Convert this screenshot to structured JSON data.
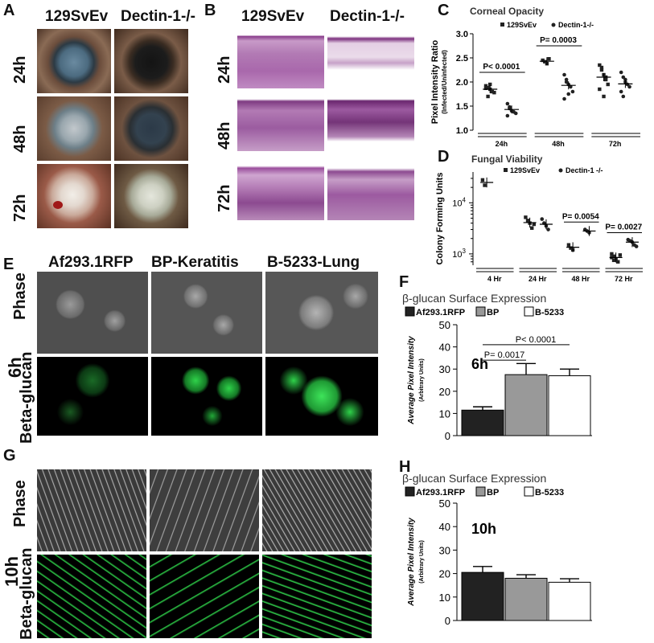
{
  "panels": {
    "A": {
      "letter": "A",
      "col_headers": [
        "129SvEv",
        "Dectin-1-/-"
      ],
      "rows": [
        "24h",
        "48h",
        "72h"
      ]
    },
    "B": {
      "letter": "B",
      "col_headers": [
        "129SvEv",
        "Dectin-1-/-"
      ],
      "rows": [
        "24h",
        "48h",
        "72h"
      ]
    },
    "C": {
      "letter": "C"
    },
    "D": {
      "letter": "D"
    },
    "E": {
      "letter": "E",
      "col_headers": [
        "Af293.1RFP",
        "BP-Keratitis",
        "B-5233-Lung"
      ],
      "row_labels": [
        "Phase",
        "Beta-glucan"
      ],
      "time": "6h"
    },
    "F": {
      "letter": "F"
    },
    "G": {
      "letter": "G",
      "row_labels": [
        "Phase",
        "Beta-glucan"
      ],
      "time": "10h"
    },
    "H": {
      "letter": "H"
    }
  },
  "colors": {
    "eye_dark": "#1a1a1a",
    "histo_pink": "#b06fb0",
    "gfp_green": "#2fd24a",
    "phase_gray": "#5a5a5a",
    "bar_black": "#222222",
    "bar_gray": "#999999",
    "bar_white": "#ffffff"
  },
  "chart_data": [
    {
      "id": "C",
      "type": "scatter",
      "title": "Corneal Opacity",
      "ylabel": "Pixel Intensity Ratio",
      "ylabel_sub": "(Infected/Uninfected)",
      "legend": [
        "129SvEv",
        "Dectin-1-/-"
      ],
      "legend_position": "top",
      "categories": [
        "24h",
        "48h",
        "72h"
      ],
      "ylim": [
        1.0,
        3.0
      ],
      "yticks": [
        "1.0",
        "1.5",
        "2.0",
        "2.5",
        "3.0"
      ],
      "series": [
        {
          "name": "129SvEv",
          "points": [
            [
              1.92,
              1.88,
              1.85,
              1.8,
              1.78,
              1.87,
              1.7,
              1.95
            ],
            [
              2.45,
              2.42,
              2.38,
              2.48
            ],
            [
              2.35,
              2.25,
              2.15,
              2.05,
              1.95,
              1.85,
              2.3,
              1.7,
              2.1
            ]
          ]
        },
        {
          "name": "Dectin-1-/-",
          "points": [
            [
              1.55,
              1.48,
              1.4,
              1.38,
              1.35,
              1.3,
              1.45
            ],
            [
              2.15,
              2.05,
              1.95,
              1.9,
              1.8,
              1.65,
              2.0,
              1.75
            ],
            [
              2.2,
              2.1,
              2.0,
              1.95,
              1.9,
              1.8,
              1.7,
              2.05
            ]
          ]
        }
      ],
      "means": [
        [
          1.85,
          1.43
        ],
        [
          2.43,
          1.93
        ],
        [
          2.1,
          1.96
        ]
      ],
      "annotations": [
        {
          "text": "P< 0.0001",
          "category": "24h"
        },
        {
          "text": "P= 0.0003",
          "category": "48h"
        }
      ]
    },
    {
      "id": "D",
      "type": "scatter",
      "title": "Fungal Viability",
      "ylabel": "Colony Forming Units",
      "legend": [
        "129SvEv",
        "Dectin-1 -/-"
      ],
      "legend_position": "top",
      "categories": [
        "4 Hr",
        "24 Hr",
        "48 Hr",
        "72 Hr"
      ],
      "yscale": "log",
      "ylim": [
        600,
        40000
      ],
      "yticks": [
        "10^3",
        "10^4"
      ],
      "series": [
        {
          "name": "129SvEv",
          "points": [
            [
              28000,
              22000
            ],
            [
              5200,
              4500,
              4000,
              3200,
              3800
            ],
            [
              1500,
              1300,
              1200
            ],
            [
              1000,
              900,
              800,
              700,
              950,
              850,
              750
            ]
          ]
        },
        {
          "name": "Dectin-1 -/-",
          "points": [
            [],
            [
              4800,
              4000,
              3500,
              3000
            ],
            [
              3000,
              2800,
              2600
            ],
            [
              1900,
              1800,
              1700,
              1500,
              1400
            ]
          ]
        }
      ],
      "means": [
        [
          25000,
          null
        ],
        [
          4100,
          3800
        ],
        [
          1350,
          2800
        ],
        [
          850,
          1700
        ]
      ],
      "annotations": [
        {
          "text": "P= 0.0054",
          "category": "48 Hr"
        },
        {
          "text": "P= 0.0027",
          "category": "72 Hr"
        }
      ]
    },
    {
      "id": "F",
      "type": "bar",
      "title": "β-glucan Surface Expression",
      "ylabel": "Average Pixel Intensity",
      "ylabel_sub": "(Arbitrary Units)",
      "categories": [
        "Af293.1RFP",
        "BP",
        "B-5233"
      ],
      "values": [
        11.5,
        27.5,
        27.0
      ],
      "errors": [
        1.5,
        5.0,
        3.0
      ],
      "colors": [
        "#222222",
        "#999999",
        "#ffffff"
      ],
      "ylim": [
        0,
        50
      ],
      "yticks": [
        "0",
        "10",
        "20",
        "30",
        "40",
        "50"
      ],
      "inset_label": "6h",
      "annotations": [
        "P= 0.0017",
        "P< 0.0001"
      ]
    },
    {
      "id": "H",
      "type": "bar",
      "title": "β-glucan Surface Expression",
      "ylabel": "Average Pixel Intensity",
      "ylabel_sub": "(Arbitrary Units)",
      "categories": [
        "Af293.1RFP",
        "BP",
        "B-5233"
      ],
      "values": [
        20.5,
        18.0,
        16.3
      ],
      "errors": [
        2.5,
        1.5,
        1.5
      ],
      "colors": [
        "#222222",
        "#999999",
        "#ffffff"
      ],
      "ylim": [
        0,
        50
      ],
      "yticks": [
        "0",
        "10",
        "20",
        "30",
        "40",
        "50"
      ],
      "inset_label": "10h"
    }
  ]
}
